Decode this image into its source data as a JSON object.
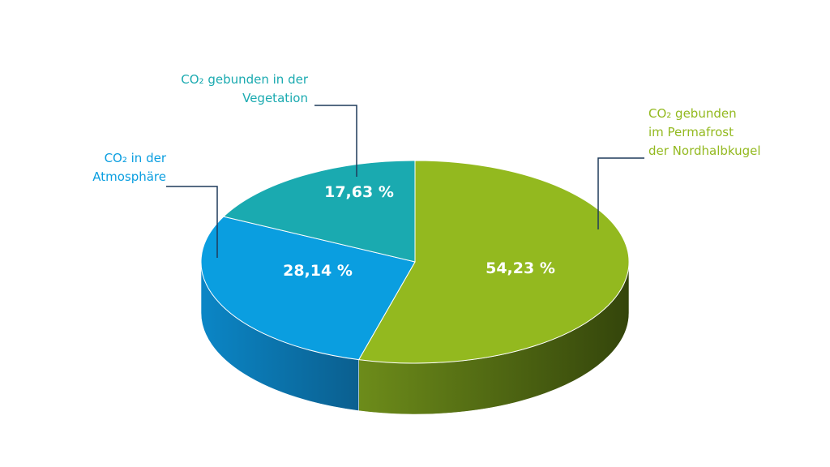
{
  "chart_data": {
    "type": "pie",
    "categories": [
      "CO₂ gebunden\nim Permafrost\nder Nordhalbkugel",
      "CO₂ in der\nAtmosphäre",
      "CO₂ gebunden in der\nVegetation"
    ],
    "values": [
      54.23,
      28.14,
      17.63
    ],
    "value_labels": [
      "54,23 %",
      "28,14 %",
      "17,63 %"
    ],
    "colors": [
      "#93b91f",
      "#0a9ee0",
      "#1aaab0"
    ]
  }
}
